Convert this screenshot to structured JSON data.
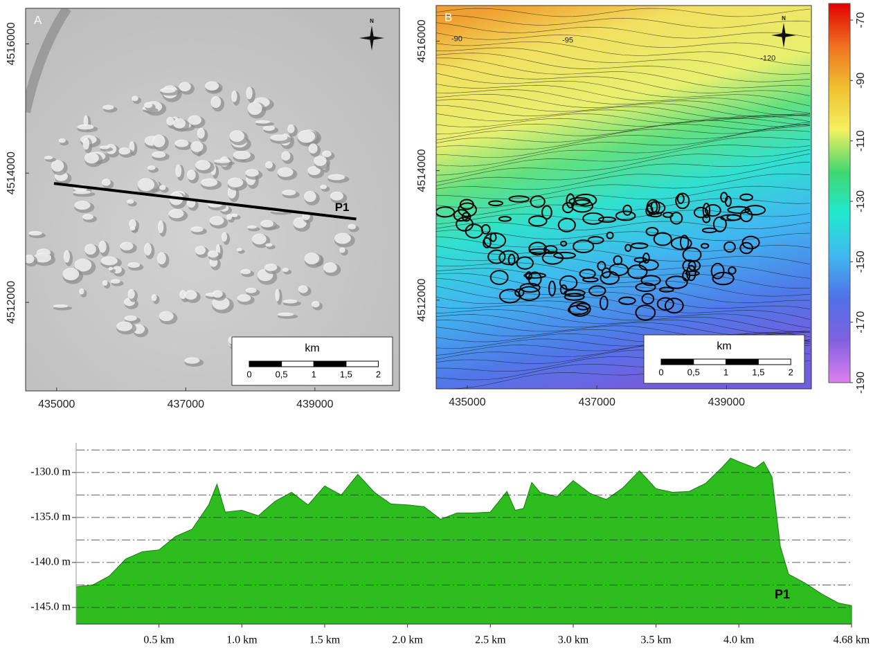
{
  "chart_data": [
    {
      "type": "map",
      "panel_label": "A",
      "style": "hillshade",
      "xlim": [
        434520,
        440310
      ],
      "ylim": [
        4510630,
        4516550
      ],
      "xticks": [
        435000,
        437000,
        439000
      ],
      "yticks": [
        4512000,
        4514000,
        4516000
      ],
      "north_label": "N",
      "scale_bar": {
        "title": "km",
        "ticks": [
          0,
          {
            "value": 0.5,
            "label": "0,5"
          },
          1,
          {
            "value": 1.5,
            "label": "1,5"
          },
          2
        ]
      },
      "profile_line": {
        "label": "P1",
        "x": [
          434960,
          439640
        ],
        "y": [
          4513840,
          4513290
        ]
      }
    },
    {
      "type": "map",
      "panel_label": "B",
      "style": "bathymetry",
      "xlim": [
        434520,
        440310
      ],
      "ylim": [
        4510630,
        4516550
      ],
      "xticks": [
        435000,
        437000,
        439000
      ],
      "yticks": [
        4512000,
        4514000,
        4516000
      ],
      "north_label": "N",
      "scale_bar": {
        "title": "km",
        "ticks": [
          0,
          {
            "value": 0.5,
            "label": "0,5"
          },
          1,
          {
            "value": 1.5,
            "label": "1,5"
          },
          2
        ]
      },
      "contour_labels": [
        {
          "label": "-90",
          "x": 434840,
          "y": 4516030
        },
        {
          "label": "-95",
          "x": 436550,
          "y": 4516010
        },
        {
          "label": "-120",
          "x": 439640,
          "y": 4515730
        }
      ]
    },
    {
      "type": "colorbar",
      "ylim": [
        -190,
        -64.5
      ],
      "yticks": [
        -70,
        -90,
        -110,
        -130,
        -150,
        -170,
        -190
      ],
      "colors": [
        "#e00000",
        "#f07020",
        "#f0c030",
        "#f4f060",
        "#40d870",
        "#20e8d0",
        "#40b8f0",
        "#5070e8",
        "#8060e0",
        "#e080f0"
      ]
    },
    {
      "type": "area",
      "color": "#2dbd1e",
      "x": [
        0,
        0.1,
        0.2,
        0.3,
        0.4,
        0.5,
        0.6,
        0.7,
        0.8,
        0.85,
        0.9,
        1.0,
        1.1,
        1.2,
        1.3,
        1.4,
        1.5,
        1.6,
        1.7,
        1.8,
        1.9,
        2.0,
        2.1,
        2.2,
        2.3,
        2.4,
        2.5,
        2.6,
        2.65,
        2.7,
        2.75,
        2.8,
        2.9,
        3.0,
        3.1,
        3.2,
        3.3,
        3.4,
        3.5,
        3.6,
        3.7,
        3.8,
        3.9,
        3.95,
        4.0,
        4.1,
        4.15,
        4.2,
        4.25,
        4.3,
        4.4,
        4.5,
        4.6,
        4.68
      ],
      "values": [
        -142.7,
        -142.5,
        -141.5,
        -139.6,
        -138.8,
        -138.6,
        -137.1,
        -136.3,
        -133.6,
        -131.3,
        -134.4,
        -134.2,
        -134.8,
        -133.2,
        -132.2,
        -133.6,
        -131.5,
        -132.5,
        -130.2,
        -132.2,
        -133.5,
        -133.6,
        -133.8,
        -135.2,
        -134.5,
        -134.5,
        -134.4,
        -132.1,
        -134.2,
        -134.0,
        -131.1,
        -132.2,
        -132.7,
        -130.9,
        -132.3,
        -133.0,
        -131.7,
        -129.8,
        -131.8,
        -132.2,
        -132.1,
        -131.2,
        -129.4,
        -128.4,
        -128.8,
        -129.5,
        -128.8,
        -130.5,
        -138.2,
        -141.3,
        -142.3,
        -143.5,
        -144.5,
        -144.8
      ],
      "xlim": [
        0,
        4.68
      ],
      "ylim": [
        -146.85,
        -126.7
      ],
      "xticks": [
        {
          "value": 0.5,
          "label": "0.5 km"
        },
        {
          "value": 1.0,
          "label": "1.0 km"
        },
        {
          "value": 1.5,
          "label": "1.5 km"
        },
        {
          "value": 2.0,
          "label": "2.0 km"
        },
        {
          "value": 2.5,
          "label": "2.5 km"
        },
        {
          "value": 3.0,
          "label": "3.0 km"
        },
        {
          "value": 3.5,
          "label": "3.5 km"
        },
        {
          "value": 4.0,
          "label": "4.0 km"
        },
        {
          "value": 4.68,
          "label": "4.68 km"
        }
      ],
      "yticks": [
        {
          "value": -130,
          "label": "-130.0 m"
        },
        {
          "value": -135,
          "label": "-135.0 m"
        },
        {
          "value": -140,
          "label": "-140.0 m"
        },
        {
          "value": -145,
          "label": "-145.0 m"
        }
      ],
      "ygrid": [
        -127.5,
        -130,
        -132.5,
        -135,
        -137.5,
        -140,
        -142.5,
        -145
      ],
      "annotation": "P1"
    }
  ]
}
